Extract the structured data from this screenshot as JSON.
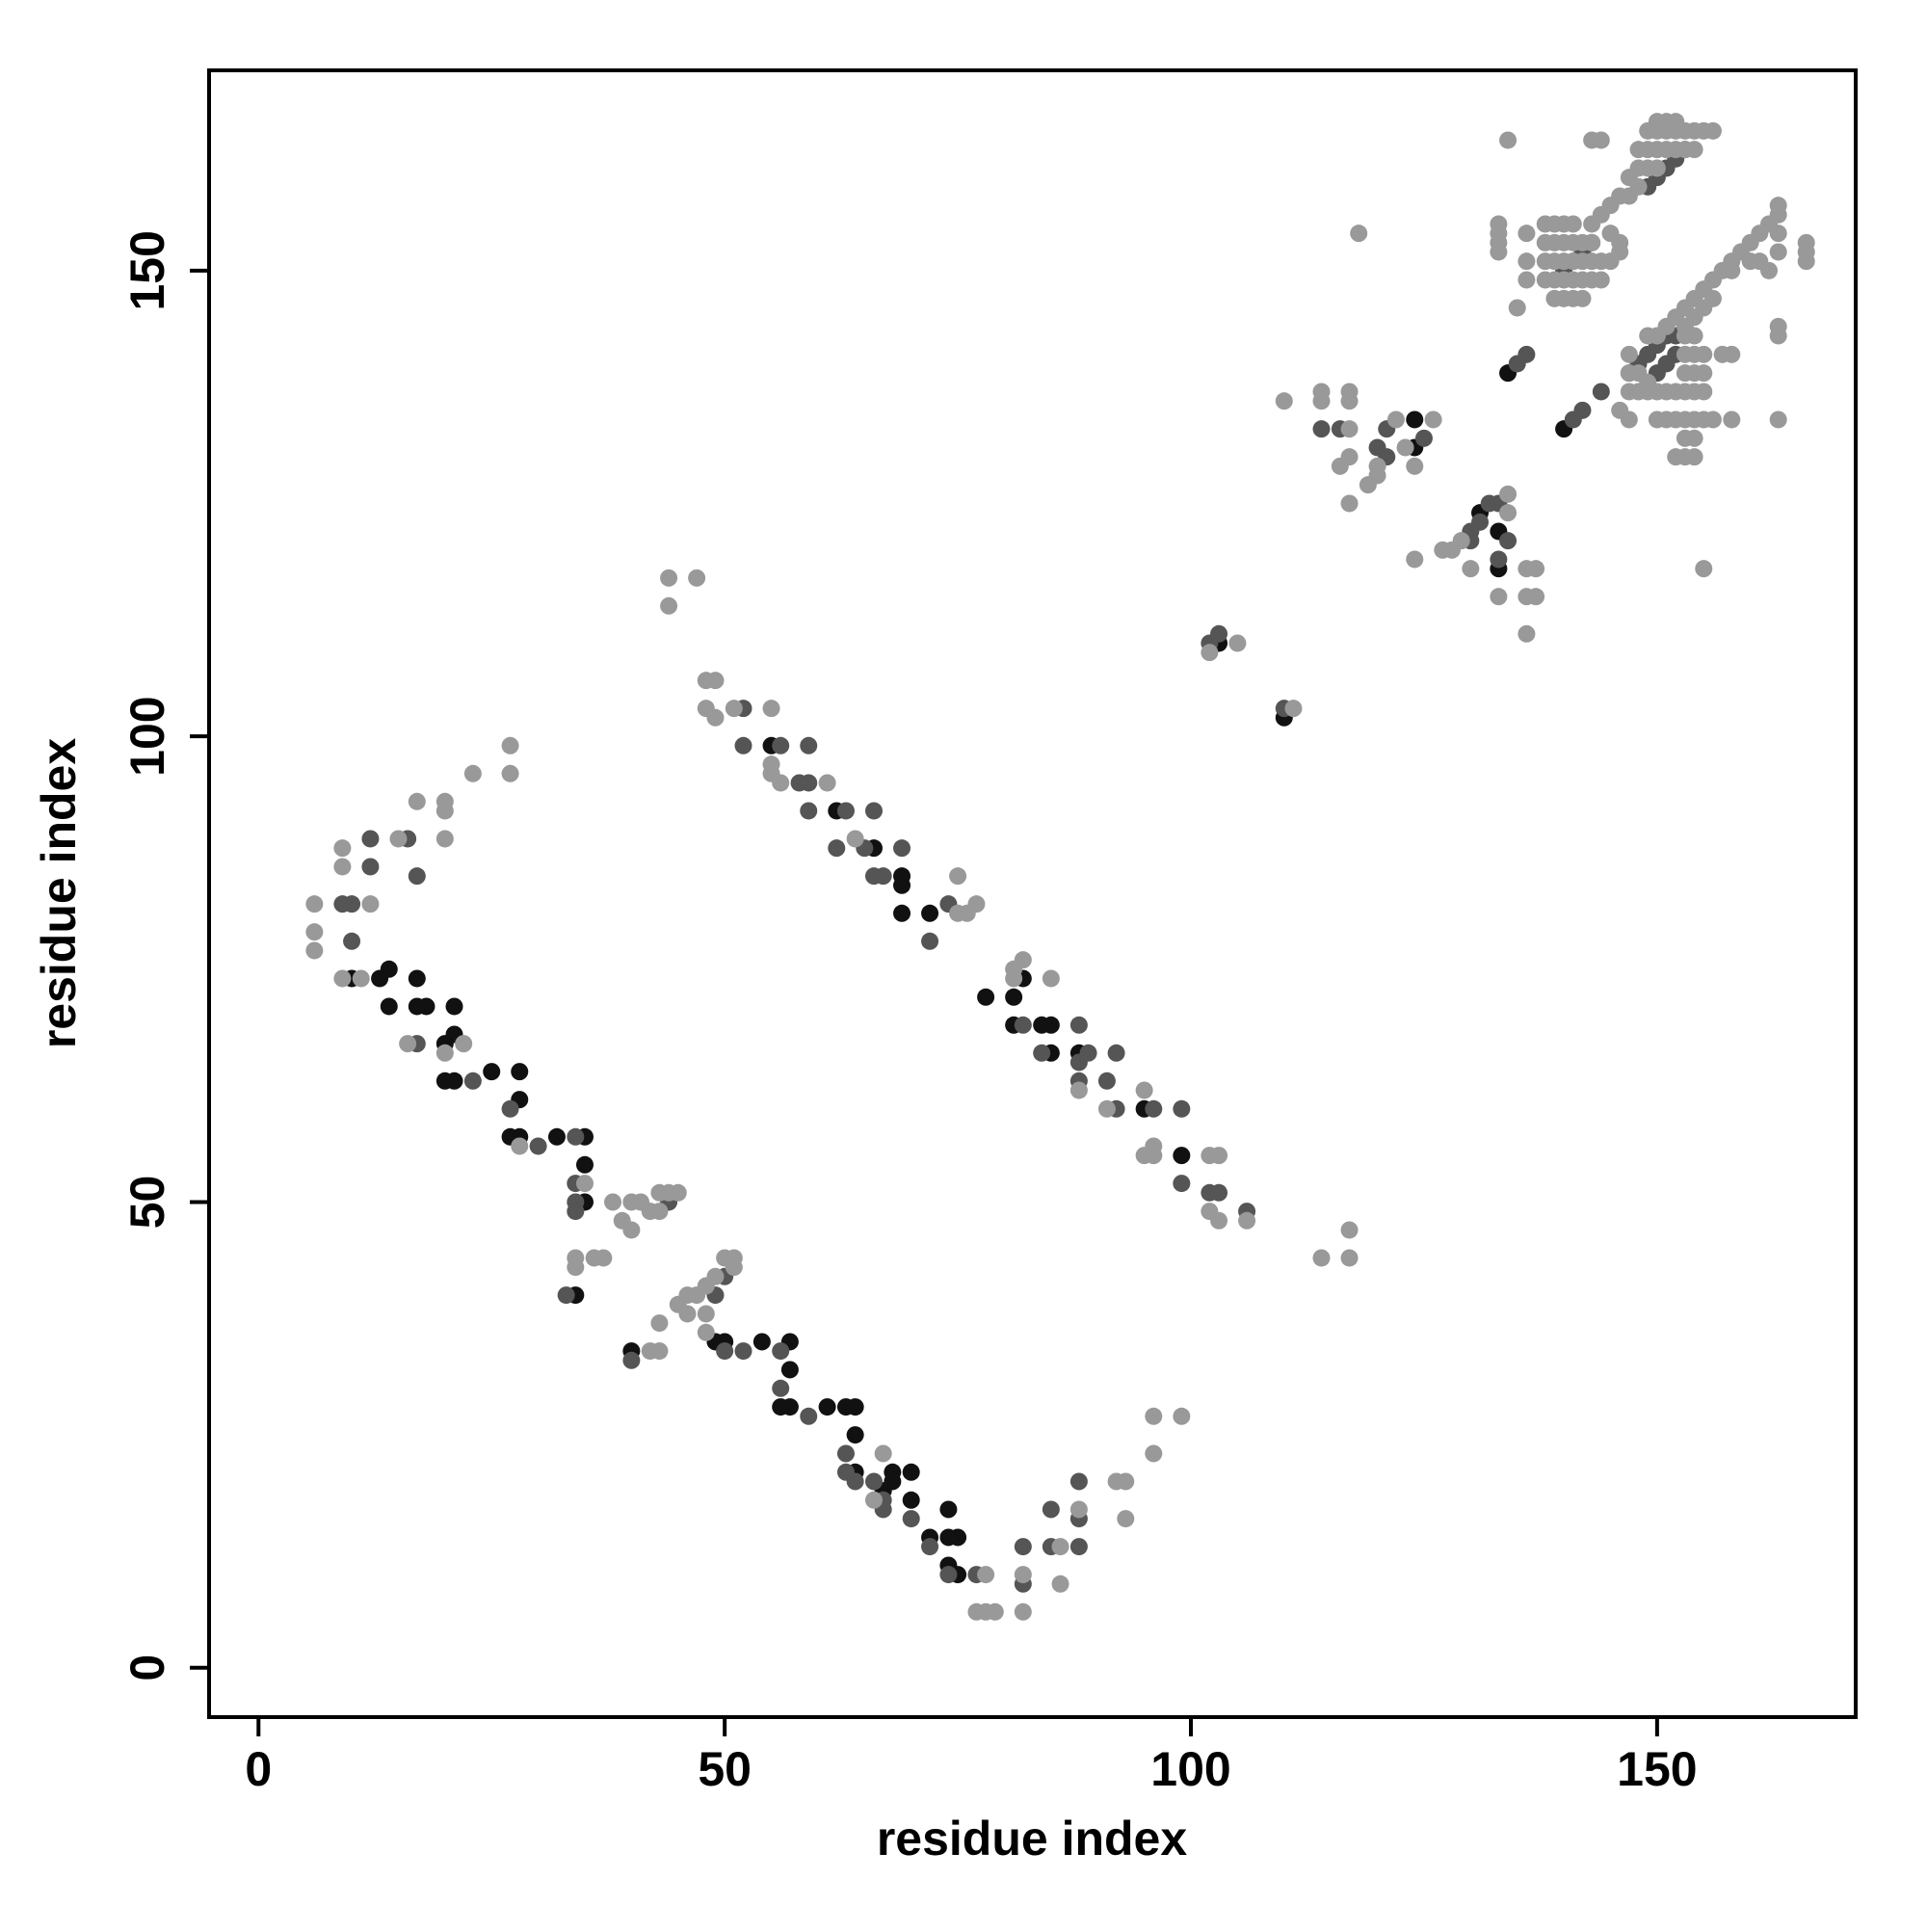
{
  "chart_data": {
    "type": "scatter",
    "x_label": "residue index",
    "y_label": "residue index",
    "xlim": [
      -5.3,
      171.3
    ],
    "ylim": [
      -5.3,
      171.5
    ],
    "xticks": [
      0,
      50,
      100,
      150
    ],
    "yticks": [
      0,
      50,
      100,
      150
    ],
    "series": [
      {
        "color": "#111111",
        "x": [
          13,
          14,
          14,
          17,
          17,
          18,
          20,
          21,
          21,
          20,
          21,
          25,
          28,
          28,
          27,
          28,
          32,
          35,
          35,
          35,
          34,
          40,
          49,
          50,
          54,
          57,
          57,
          56,
          57,
          61,
          63,
          64,
          64,
          64,
          67,
          68,
          68,
          70,
          70,
          72,
          74,
          74,
          75,
          74,
          75,
          55,
          62,
          66,
          69,
          69,
          69,
          72,
          78,
          81,
          82,
          81,
          84,
          85,
          85,
          88,
          95,
          99,
          124,
          124,
          131,
          133,
          133,
          134,
          140,
          10,
          103,
          110
        ],
        "y": [
          74,
          75,
          71,
          74,
          71,
          71,
          67,
          68,
          71,
          63,
          63,
          64,
          64,
          61,
          57,
          57,
          57,
          57,
          54,
          50,
          40,
          34,
          35,
          35,
          35,
          35,
          32,
          28,
          28,
          28,
          28,
          28,
          25,
          21,
          19,
          21,
          20,
          21,
          18,
          14,
          17,
          14,
          14,
          11,
          10,
          99,
          92,
          88,
          85,
          84,
          81,
          81,
          72,
          72,
          74,
          69,
          69,
          69,
          66,
          66,
          60,
          55,
          134,
          131,
          124,
          122,
          118,
          139,
          133,
          74,
          110,
          102
        ]
      },
      {
        "color": "#555555",
        "x": [
          10,
          9,
          10,
          12,
          12,
          17,
          16,
          17,
          23,
          27,
          30,
          34,
          34,
          34,
          34,
          33,
          40,
          50,
          52,
          56,
          56,
          59,
          63,
          63,
          64,
          66,
          67,
          67,
          70,
          72,
          74,
          77,
          82,
          82,
          85,
          85,
          88,
          88,
          88,
          52,
          52,
          56,
          59,
          58,
          59,
          59,
          63,
          66,
          62,
          65,
          69,
          66,
          67,
          74,
          72,
          82,
          84,
          88,
          88,
          89,
          88,
          91,
          92,
          92,
          96,
          99,
          99,
          102,
          103,
          106,
          44,
          50,
          49,
          103,
          102,
          110,
          114,
          116,
          120,
          121,
          125,
          121,
          130,
          130,
          131,
          132,
          133,
          134,
          133,
          135,
          136,
          141,
          142,
          144,
          147,
          148,
          149,
          150,
          151,
          152,
          150,
          151,
          152,
          140,
          141,
          142,
          143,
          151,
          152,
          153,
          150,
          149
        ],
        "y": [
          78,
          82,
          82,
          89,
          86,
          85,
          89,
          67,
          63,
          60,
          56,
          57,
          52,
          50,
          49,
          40,
          33,
          34,
          34,
          34,
          30,
          27,
          23,
          21,
          20,
          20,
          18,
          17,
          16,
          13,
          10,
          10,
          9,
          13,
          13,
          17,
          13,
          16,
          20,
          103,
          99,
          99,
          99,
          95,
          95,
          92,
          92,
          92,
          88,
          88,
          88,
          85,
          85,
          82,
          78,
          69,
          66,
          69,
          65,
          66,
          63,
          63,
          66,
          60,
          60,
          60,
          52,
          51,
          51,
          49,
          50,
          42,
          40,
          111,
          110,
          103,
          133,
          133,
          131,
          133,
          132,
          130,
          121,
          122,
          123,
          125,
          125,
          121,
          119,
          140,
          141,
          134,
          135,
          137,
          139,
          140,
          141,
          142,
          143,
          143,
          139,
          140,
          141,
          150,
          151,
          152,
          153,
          161,
          162,
          163,
          160,
          159
        ]
      },
      {
        "color": "#999999",
        "x": [
          6,
          6,
          6,
          9,
          9,
          11,
          9,
          15,
          12,
          20,
          20,
          20,
          17,
          23,
          27,
          27,
          16,
          20,
          22,
          28,
          34,
          34,
          36,
          37,
          38,
          39,
          40,
          40,
          41,
          42,
          43,
          44,
          45,
          43,
          42,
          43,
          43,
          45,
          46,
          47,
          46,
          48,
          48,
          48,
          49,
          50,
          51,
          51,
          35,
          67,
          66,
          78,
          77,
          78,
          79,
          82,
          82,
          86,
          86,
          88,
          92,
          93,
          93,
          96,
          96,
          99,
          44,
          47,
          44,
          48,
          49,
          48,
          49,
          51,
          55,
          55,
          55,
          56,
          61,
          64,
          75,
          75,
          76,
          77,
          81,
          81,
          82,
          85,
          88,
          91,
          95,
          96,
          95,
          96,
          102,
          103,
          102,
          103,
          106,
          114,
          117,
          117,
          105,
          102,
          111,
          110,
          114,
          114,
          117,
          117,
          117,
          117,
          117,
          116,
          120,
          122,
          123,
          126,
          119,
          120,
          124,
          124,
          127,
          128,
          129,
          134,
          134,
          130,
          133,
          136,
          137,
          136,
          137,
          136,
          118,
          133,
          133,
          133,
          133,
          136,
          136,
          136,
          135,
          134,
          143,
          144,
          155,
          163,
          163,
          163,
          166,
          166,
          166,
          150,
          151,
          152,
          149,
          150,
          151,
          152,
          153,
          154,
          155,
          156,
          148,
          149,
          150,
          151,
          152,
          153,
          154,
          148,
          149,
          150,
          147,
          146,
          145,
          144,
          143,
          147,
          148,
          138,
          139,
          140,
          141,
          138,
          139,
          140,
          141,
          142,
          143,
          138,
          139,
          140,
          141,
          142,
          143,
          144,
          145,
          138,
          139,
          140,
          141,
          142,
          143,
          144,
          139,
          140,
          141,
          142,
          146,
          145,
          146,
          153,
          154,
          155,
          156,
          157,
          158,
          159,
          160,
          161,
          162,
          163,
          163,
          163,
          163,
          162,
          161,
          160,
          158,
          156,
          155,
          154,
          153,
          152,
          147,
          148,
          149,
          150,
          151,
          152,
          153,
          154,
          155,
          147,
          148,
          149,
          153,
          154,
          155,
          153,
          154,
          155,
          149,
          150,
          151,
          147,
          146,
          150,
          151,
          152,
          153,
          154,
          155,
          156,
          154,
          153,
          152,
          153,
          154,
          158,
          157,
          158,
          153,
          154,
          147
        ],
        "y": [
          82,
          79,
          77,
          86,
          74,
          74,
          88,
          89,
          82,
          89,
          92,
          93,
          93,
          96,
          96,
          99,
          67,
          66,
          67,
          56,
          44,
          43,
          44,
          44,
          50,
          48,
          50,
          47,
          50,
          49,
          51,
          51,
          51,
          49,
          34,
          34,
          37,
          39,
          40,
          40,
          38,
          38,
          36,
          41,
          42,
          44,
          44,
          43,
          52,
          23,
          18,
          10,
          6,
          6,
          6,
          6,
          10,
          13,
          9,
          17,
          20,
          20,
          16,
          23,
          27,
          27,
          117,
          117,
          114,
          106,
          106,
          103,
          102,
          103,
          103,
          97,
          96,
          95,
          95,
          89,
          85,
          81,
          81,
          82,
          74,
          75,
          76,
          74,
          62,
          60,
          62,
          56,
          55,
          55,
          55,
          55,
          49,
          48,
          48,
          44,
          47,
          44,
          110,
          109,
          103,
          136,
          137,
          136,
          137,
          136,
          133,
          130,
          125,
          129,
          128,
          134,
          131,
          134,
          127,
          129,
          129,
          119,
          120,
          120,
          121,
          124,
          126,
          118,
          115,
          115,
          115,
          118,
          118,
          111,
          154,
          154,
          155,
          153,
          152,
          154,
          151,
          149,
          146,
          164,
          164,
          164,
          118,
          144,
          143,
          134,
          153,
          152,
          151,
          166,
          166,
          166,
          165,
          165,
          165,
          165,
          165,
          165,
          165,
          165,
          163,
          163,
          163,
          163,
          163,
          163,
          163,
          161,
          161,
          161,
          160,
          158,
          157,
          156,
          155,
          158,
          159,
          155,
          155,
          155,
          155,
          153,
          153,
          153,
          153,
          153,
          153,
          151,
          151,
          151,
          151,
          151,
          151,
          151,
          151,
          149,
          149,
          149,
          149,
          149,
          149,
          149,
          147,
          147,
          147,
          147,
          153,
          154,
          152,
          146,
          147,
          148,
          149,
          150,
          151,
          152,
          153,
          154,
          155,
          156,
          157,
          154,
          152,
          150,
          151,
          151,
          150,
          147,
          146,
          145,
          144,
          145,
          137,
          137,
          137,
          137,
          137,
          137,
          137,
          137,
          137,
          139,
          139,
          138,
          139,
          139,
          139,
          141,
          141,
          141,
          143,
          143,
          144,
          141,
          135,
          134,
          134,
          134,
          134,
          134,
          134,
          134,
          132,
          132,
          130,
          130,
          130,
          134,
          141,
          141,
          143,
          143,
          134
        ]
      }
    ]
  }
}
